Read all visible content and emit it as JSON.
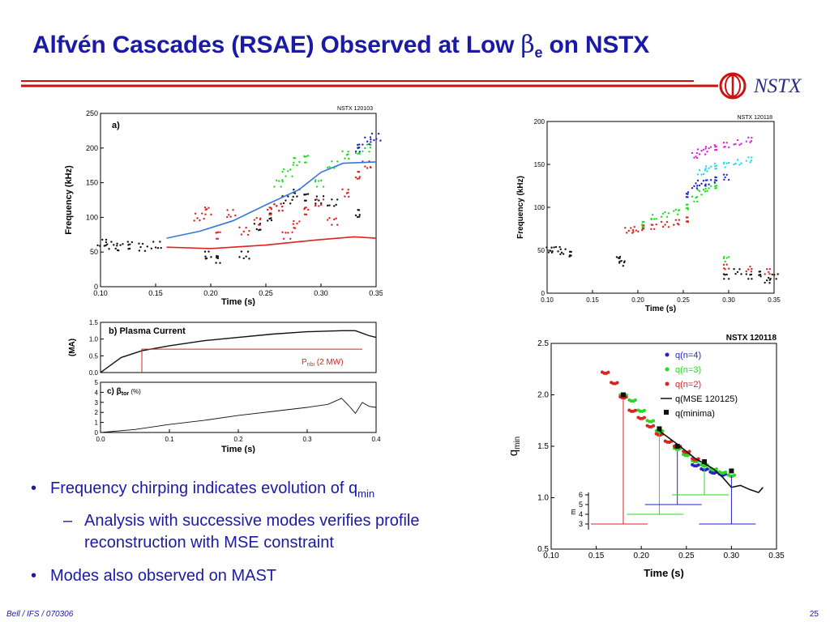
{
  "slide": {
    "title_pre": "Alfvén Cascades (RSAE) Observed at Low ",
    "title_beta": "β",
    "title_sub": "e",
    "title_post": " on NSTX",
    "logo_text": "NSTX",
    "footer_left": "Bell / IFS / 070306",
    "page_number": "25"
  },
  "bullets": {
    "item1_pre": "Frequency chirping indicates evolution of q",
    "item1_sub": "min",
    "item2": "Analysis with successive modes verifies profile reconstruction with MSE constraint",
    "item3": "Modes also observed on MAST"
  },
  "colors": {
    "title": "#1a1aa6",
    "rule": "#cc1111",
    "series_black": "#111111",
    "series_red": "#dd2222",
    "series_green": "#22dd22",
    "series_blue": "#2222cc",
    "series_cyan": "#22dddd",
    "series_magenta": "#dd22dd",
    "qfit_blue": "#3377dd"
  },
  "chart_data": [
    {
      "type": "scatter",
      "panel": "a)",
      "shot": "NSTX 120103",
      "xlabel": "Time (s)",
      "ylabel": "Frequency (kHz)",
      "xlim": [
        0.1,
        0.35
      ],
      "ylim": [
        0,
        250
      ],
      "xticks": [
        "0.10",
        "0.15",
        "0.20",
        "0.25",
        "0.30",
        "0.35"
      ],
      "yticks": [
        "0",
        "50",
        "100",
        "150",
        "200",
        "250"
      ],
      "series": [
        {
          "color": "black",
          "points": [
            [
              0.1,
              62
            ],
            [
              0.11,
              60
            ],
            [
              0.12,
              58
            ],
            [
              0.13,
              60
            ],
            [
              0.14,
              57
            ],
            [
              0.15,
              59
            ],
            [
              0.2,
              45
            ],
            [
              0.21,
              40
            ],
            [
              0.23,
              45
            ],
            [
              0.24,
              85
            ],
            [
              0.25,
              100
            ],
            [
              0.26,
              115
            ],
            [
              0.27,
              125
            ],
            [
              0.28,
              135
            ],
            [
              0.29,
              130
            ],
            [
              0.3,
              125
            ],
            [
              0.31,
              120
            ],
            [
              0.33,
              105
            ]
          ]
        },
        {
          "color": "red",
          "points": [
            [
              0.19,
              100
            ],
            [
              0.2,
              110
            ],
            [
              0.21,
              75
            ],
            [
              0.22,
              105
            ],
            [
              0.23,
              80
            ],
            [
              0.24,
              95
            ],
            [
              0.25,
              110
            ],
            [
              0.26,
              115
            ],
            [
              0.27,
              75
            ],
            [
              0.28,
              90
            ],
            [
              0.29,
              110
            ],
            [
              0.3,
              120
            ],
            [
              0.31,
              95
            ],
            [
              0.32,
              135
            ],
            [
              0.33,
              160
            ],
            [
              0.34,
              175
            ]
          ]
        },
        {
          "color": "green",
          "points": [
            [
              0.26,
              150
            ],
            [
              0.27,
              165
            ],
            [
              0.28,
              180
            ],
            [
              0.29,
              185
            ],
            [
              0.3,
              150
            ],
            [
              0.31,
              175
            ],
            [
              0.32,
              190
            ],
            [
              0.33,
              195
            ],
            [
              0.34,
              200
            ]
          ]
        },
        {
          "color": "blue",
          "points": [
            [
              0.33,
              200
            ],
            [
              0.34,
              210
            ],
            [
              0.35,
              215
            ]
          ]
        }
      ],
      "lines": [
        {
          "color": "blue",
          "points": [
            [
              0.16,
              70
            ],
            [
              0.19,
              80
            ],
            [
              0.22,
              95
            ],
            [
              0.25,
              118
            ],
            [
              0.28,
              140
            ],
            [
              0.3,
              165
            ],
            [
              0.32,
              178
            ],
            [
              0.35,
              180
            ]
          ]
        },
        {
          "color": "red",
          "points": [
            [
              0.16,
              57
            ],
            [
              0.2,
              55
            ],
            [
              0.25,
              60
            ],
            [
              0.28,
              65
            ],
            [
              0.3,
              68
            ],
            [
              0.33,
              72
            ],
            [
              0.35,
              70
            ]
          ]
        }
      ]
    },
    {
      "type": "line",
      "panel": "b) Plasma Current",
      "xlabel": "",
      "ylabel": "(MA)",
      "xlim": [
        0.0,
        0.4
      ],
      "ylim": [
        0.0,
        1.5
      ],
      "yticks": [
        "0.0",
        "0.5",
        "1.0",
        "1.5"
      ],
      "annotation_pre": "P",
      "annotation_sub": "nbi",
      "annotation_post": " (2 MW)",
      "series": [
        {
          "name": "",
          "color": "black",
          "x": [
            0.0,
            0.03,
            0.06,
            0.1,
            0.15,
            0.2,
            0.25,
            0.3,
            0.35,
            0.37,
            0.39,
            0.4
          ],
          "y": [
            0.0,
            0.45,
            0.65,
            0.8,
            0.95,
            1.05,
            1.15,
            1.22,
            1.25,
            1.25,
            1.1,
            1.05
          ]
        },
        {
          "name": "",
          "color": "red",
          "x": [
            0.06,
            0.06,
            0.38
          ],
          "y": [
            0.0,
            0.7,
            0.7
          ]
        }
      ]
    },
    {
      "type": "line",
      "panel": "c) β",
      "panel_sub": "tor",
      "panel_unit": " (%)",
      "xlabel": "Time (s)",
      "ylabel": "",
      "xlim": [
        0.0,
        0.4
      ],
      "ylim": [
        0,
        5
      ],
      "xticks": [
        "0.0",
        "0.1",
        "0.2",
        "0.3",
        "0.4"
      ],
      "yticks": [
        "0",
        "1",
        "2",
        "3",
        "4",
        "5"
      ],
      "series": [
        {
          "name": "",
          "color": "black",
          "x": [
            0.0,
            0.05,
            0.1,
            0.15,
            0.2,
            0.25,
            0.3,
            0.33,
            0.35,
            0.36,
            0.37,
            0.38,
            0.39,
            0.4
          ],
          "y": [
            0,
            0.3,
            0.8,
            1.2,
            1.7,
            2.1,
            2.5,
            2.8,
            3.4,
            2.7,
            1.9,
            3.0,
            2.6,
            2.5
          ]
        }
      ]
    },
    {
      "type": "scatter",
      "shot": "NSTX 120118",
      "xlabel": "Time (s)",
      "ylabel": "Frequency (kHz)",
      "xlim": [
        0.1,
        0.35
      ],
      "ylim": [
        0,
        200
      ],
      "xticks": [
        "0.10",
        "0.15",
        "0.20",
        "0.25",
        "0.30",
        "0.35"
      ],
      "yticks": [
        "0",
        "50",
        "100",
        "150",
        "200"
      ],
      "series": [
        {
          "color": "black",
          "points": [
            [
              0.1,
              50
            ],
            [
              0.11,
              52
            ],
            [
              0.12,
              48
            ],
            [
              0.13,
              45
            ],
            [
              0.175,
              40
            ],
            [
              0.18,
              35
            ],
            [
              0.3,
              20
            ],
            [
              0.31,
              25
            ],
            [
              0.32,
              20
            ],
            [
              0.33,
              22
            ],
            [
              0.34,
              15
            ],
            [
              0.35,
              20
            ]
          ]
        },
        {
          "color": "red",
          "points": [
            [
              0.19,
              73
            ],
            [
              0.2,
              74
            ],
            [
              0.21,
              76
            ],
            [
              0.22,
              78
            ],
            [
              0.23,
              80
            ],
            [
              0.24,
              82
            ],
            [
              0.25,
              85
            ],
            [
              0.3,
              30
            ],
            [
              0.32,
              28
            ],
            [
              0.34,
              25
            ]
          ]
        },
        {
          "color": "green",
          "points": [
            [
              0.21,
              80
            ],
            [
              0.22,
              88
            ],
            [
              0.23,
              92
            ],
            [
              0.24,
              95
            ],
            [
              0.25,
              100
            ],
            [
              0.26,
              110
            ],
            [
              0.27,
              118
            ],
            [
              0.28,
              122
            ],
            [
              0.29,
              125
            ],
            [
              0.3,
              40
            ]
          ]
        },
        {
          "color": "blue",
          "points": [
            [
              0.25,
              115
            ],
            [
              0.26,
              125
            ],
            [
              0.27,
              128
            ],
            [
              0.28,
              130
            ],
            [
              0.29,
              132
            ],
            [
              0.3,
              135
            ]
          ]
        },
        {
          "color": "cyan",
          "points": [
            [
              0.27,
              140
            ],
            [
              0.28,
              145
            ],
            [
              0.29,
              148
            ],
            [
              0.3,
              150
            ],
            [
              0.31,
              152
            ],
            [
              0.32,
              155
            ]
          ]
        },
        {
          "color": "magenta",
          "points": [
            [
              0.26,
              160
            ],
            [
              0.27,
              165
            ],
            [
              0.28,
              168
            ],
            [
              0.29,
              170
            ],
            [
              0.3,
              172
            ],
            [
              0.31,
              175
            ],
            [
              0.32,
              178
            ]
          ]
        }
      ]
    },
    {
      "type": "scatter",
      "shot": "NSTX 120118",
      "xlabel": "Time (s)",
      "ylabel_pre": "q",
      "ylabel_sub": "min",
      "xlim": [
        0.1,
        0.35
      ],
      "ylim": [
        0.5,
        2.5
      ],
      "xticks": [
        "0.10",
        "0.15",
        "0.20",
        "0.25",
        "0.30",
        "0.35"
      ],
      "yticks": [
        "0.5",
        "1.0",
        "1.5",
        "2.0",
        "2.5"
      ],
      "m_label": "m",
      "m_ticks": [
        "3",
        "4",
        "5",
        "6"
      ],
      "legend": [
        {
          "label": "q(n=4)",
          "color": "blue"
        },
        {
          "label": "q(n=3)",
          "color": "green"
        },
        {
          "label": "q(n=2)",
          "color": "red"
        },
        {
          "label": "q(MSE 120125)",
          "color": "black"
        },
        {
          "label": "q(minima)",
          "color": "black"
        }
      ],
      "series": [
        {
          "name": "q(n=4)",
          "points": [
            [
              0.26,
              1.32
            ],
            [
              0.27,
              1.28
            ],
            [
              0.28,
              1.25
            ],
            [
              0.29,
              1.23
            ]
          ]
        },
        {
          "name": "q(n=3)",
          "points": [
            [
              0.18,
              2.0
            ],
            [
              0.19,
              1.95
            ],
            [
              0.2,
              1.85
            ],
            [
              0.21,
              1.75
            ],
            [
              0.22,
              1.65
            ],
            [
              0.23,
              1.55
            ],
            [
              0.24,
              1.48
            ],
            [
              0.25,
              1.42
            ],
            [
              0.26,
              1.36
            ],
            [
              0.27,
              1.32
            ],
            [
              0.28,
              1.28
            ],
            [
              0.29,
              1.25
            ],
            [
              0.3,
              1.22
            ]
          ]
        },
        {
          "name": "q(n=2)",
          "points": [
            [
              0.16,
              2.22
            ],
            [
              0.17,
              2.12
            ],
            [
              0.18,
              1.98
            ],
            [
              0.19,
              1.85
            ],
            [
              0.2,
              1.78
            ],
            [
              0.21,
              1.7
            ],
            [
              0.22,
              1.62
            ],
            [
              0.23,
              1.55
            ],
            [
              0.24,
              1.5
            ],
            [
              0.25,
              1.45
            ],
            [
              0.26,
              1.38
            ]
          ]
        },
        {
          "name": "q(MSE 120125)",
          "points": [
            [
              0.22,
              1.65
            ],
            [
              0.24,
              1.52
            ],
            [
              0.26,
              1.38
            ],
            [
              0.28,
              1.28
            ],
            [
              0.29,
              1.2
            ],
            [
              0.3,
              1.1
            ],
            [
              0.31,
              1.12
            ],
            [
              0.32,
              1.08
            ],
            [
              0.33,
              1.05
            ],
            [
              0.335,
              1.1
            ]
          ]
        },
        {
          "name": "q(minima)",
          "points": [
            [
              0.18,
              2.0
            ],
            [
              0.22,
              1.67
            ],
            [
              0.24,
              1.5
            ],
            [
              0.27,
              1.35
            ],
            [
              0.3,
              1.26
            ]
          ]
        }
      ]
    }
  ]
}
